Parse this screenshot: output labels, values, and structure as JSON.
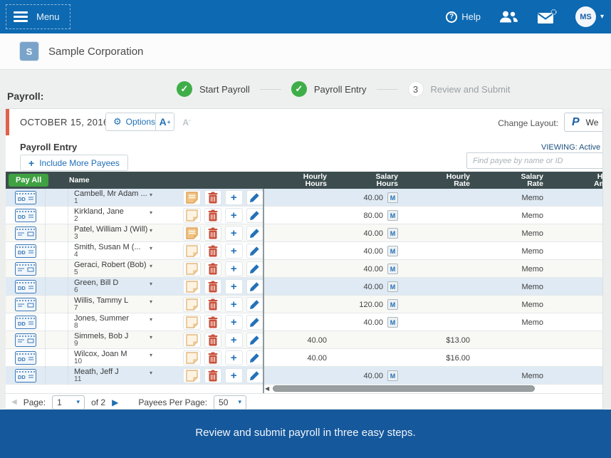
{
  "topbar": {
    "menu_label": "Menu",
    "help_label": "Help",
    "avatar_initials": "MS"
  },
  "company": {
    "logo_letter": "S",
    "name": "Sample Corporation"
  },
  "steps": {
    "section_label": "Payroll:",
    "items": [
      {
        "label": "Start Payroll",
        "state": "done"
      },
      {
        "label": "Payroll Entry",
        "state": "done"
      },
      {
        "label": "Review and Submit",
        "state": "current",
        "number": "3"
      }
    ]
  },
  "toolbar": {
    "date": "OCTOBER 15, 2016",
    "options_label": "Options",
    "font_increase_label": "A",
    "font_decrease_label": "A",
    "change_layout_label": "Change Layout:",
    "layout_logo": "P",
    "layout_value": "We"
  },
  "entry": {
    "title": "Payroll Entry",
    "include_more_label": "Include More Payees",
    "viewing_label": "VIEWING: Active",
    "search_placeholder": "Find payee by name or ID"
  },
  "table": {
    "pay_all_label": "Pay All",
    "columns": [
      "Name",
      "Hourly Hours",
      "Salary Hours",
      "Hourly Rate",
      "Salary Rate",
      "Hourly Amount"
    ],
    "memo_badge": "M",
    "rows": [
      {
        "name": "Cambell, Mr Adam ...",
        "id": "1",
        "pay_icon": "dd",
        "memo": "filled",
        "band": true,
        "hourly_hours": "",
        "salary_hours": "40.00",
        "salary_m": true,
        "hourly_rate": "",
        "salary_rate": "Memo",
        "hourly_amount": ""
      },
      {
        "name": "Kirkland, Jane",
        "id": "2",
        "pay_icon": "dd",
        "memo": "plain",
        "band": false,
        "hourly_hours": "",
        "salary_hours": "80.00",
        "salary_m": true,
        "hourly_rate": "",
        "salary_rate": "Memo",
        "hourly_amount": ""
      },
      {
        "name": "Patel, William J (Will)",
        "id": "3",
        "pay_icon": "check",
        "memo": "filled",
        "band": false,
        "hourly_hours": "",
        "salary_hours": "40.00",
        "salary_m": true,
        "hourly_rate": "",
        "salary_rate": "Memo",
        "hourly_amount": ""
      },
      {
        "name": "Smith, Susan M (...",
        "id": "4",
        "pay_icon": "dd",
        "memo": "plain",
        "band": false,
        "hourly_hours": "",
        "salary_hours": "40.00",
        "salary_m": true,
        "hourly_rate": "",
        "salary_rate": "Memo",
        "hourly_amount": ""
      },
      {
        "name": "Geraci, Robert (Bob)",
        "id": "5",
        "pay_icon": "check",
        "memo": "plain",
        "band": false,
        "hourly_hours": "",
        "salary_hours": "40.00",
        "salary_m": true,
        "hourly_rate": "",
        "salary_rate": "Memo",
        "hourly_amount": ""
      },
      {
        "name": "Green, Bill D",
        "id": "6",
        "pay_icon": "dd",
        "memo": "plain",
        "band": true,
        "hourly_hours": "",
        "salary_hours": "40.00",
        "salary_m": true,
        "hourly_rate": "",
        "salary_rate": "Memo",
        "hourly_amount": ""
      },
      {
        "name": "Willis, Tammy L",
        "id": "7",
        "pay_icon": "check",
        "memo": "plain",
        "band": false,
        "hourly_hours": "",
        "salary_hours": "120.00",
        "salary_m": true,
        "hourly_rate": "",
        "salary_rate": "Memo",
        "hourly_amount": ""
      },
      {
        "name": "Jones, Summer",
        "id": "8",
        "pay_icon": "dd",
        "memo": "plain",
        "band": false,
        "hourly_hours": "",
        "salary_hours": "40.00",
        "salary_m": true,
        "hourly_rate": "",
        "salary_rate": "Memo",
        "hourly_amount": ""
      },
      {
        "name": "Simmels, Bob J",
        "id": "9",
        "pay_icon": "check",
        "memo": "plain",
        "band": false,
        "hourly_hours": "40.00",
        "salary_hours": "",
        "salary_m": false,
        "hourly_rate": "$13.00",
        "salary_rate": "",
        "hourly_amount": ""
      },
      {
        "name": "Wilcox, Joan M",
        "id": "10",
        "pay_icon": "dd",
        "memo": "plain",
        "band": false,
        "hourly_hours": "40.00",
        "salary_hours": "",
        "salary_m": false,
        "hourly_rate": "$16.00",
        "salary_rate": "",
        "hourly_amount": ""
      },
      {
        "name": "Meath, Jeff J",
        "id": "11",
        "pay_icon": "dd",
        "memo": "plain",
        "band": true,
        "hourly_hours": "",
        "salary_hours": "40.00",
        "salary_m": true,
        "hourly_rate": "",
        "salary_rate": "Memo",
        "hourly_amount": ""
      }
    ]
  },
  "pagination": {
    "page_label": "Page:",
    "page_value": "1",
    "of_label": "of 2",
    "per_page_label": "Payees Per Page:",
    "per_page_value": "50"
  },
  "footer": {
    "message": "Review and submit payroll in three easy steps."
  },
  "colors": {
    "topbar_blue": "#0d69b1",
    "footer_blue": "#15589c",
    "accent_blue": "#2170b8",
    "header_slate": "#3d4d4f",
    "pay_all_green": "#3fa142",
    "step_green": "#3fae49",
    "accent_orange": "#e0614a",
    "band_row_blue": "#dfeaf4"
  }
}
